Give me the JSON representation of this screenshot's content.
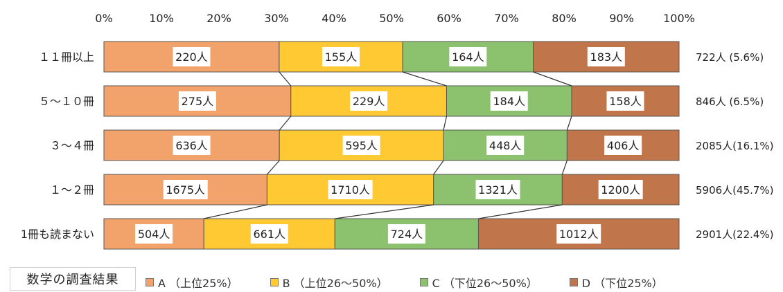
{
  "chart_data": {
    "type": "bar",
    "stacked": "percent",
    "orientation": "horizontal",
    "categories": [
      "１１冊以上",
      "５～１０冊",
      "３～４冊",
      "１～２冊",
      "1冊も読まない"
    ],
    "totals_label": [
      "722人 (5.6%)",
      "846人 (6.5%)",
      "2085人(16.1%)",
      "5906人(45.7%)",
      "2901人(22.4%)"
    ],
    "series": [
      {
        "name": "A （上位25%）",
        "color": "#F2A26B",
        "values": [
          220,
          275,
          636,
          1675,
          504
        ],
        "labels": [
          "220人",
          "275人",
          "636人",
          "1675人",
          "504人"
        ]
      },
      {
        "name": "B （上位26～50%）",
        "color": "#FFC933",
        "values": [
          155,
          229,
          595,
          1710,
          661
        ],
        "labels": [
          "155人",
          "229人",
          "595人",
          "1710人",
          "661人"
        ]
      },
      {
        "name": "C （下位26～50%）",
        "color": "#8CC16E",
        "values": [
          164,
          184,
          448,
          1321,
          724
        ],
        "labels": [
          "164人",
          "184人",
          "448人",
          "1321人",
          "724人"
        ]
      },
      {
        "name": "D （下位25%）",
        "color": "#C0764A",
        "values": [
          183,
          158,
          406,
          1200,
          1012
        ],
        "labels": [
          "183人",
          "158人",
          "406人",
          "1200人",
          "1012人"
        ]
      }
    ],
    "x_ticks": [
      "0%",
      "10%",
      "20%",
      "30%",
      "40%",
      "50%",
      "60%",
      "70%",
      "80%",
      "90%",
      "100%"
    ],
    "xlim": [
      0,
      100
    ],
    "series_lines": true,
    "legend_title": "数学の調査結果",
    "legend_position": "bottom"
  }
}
